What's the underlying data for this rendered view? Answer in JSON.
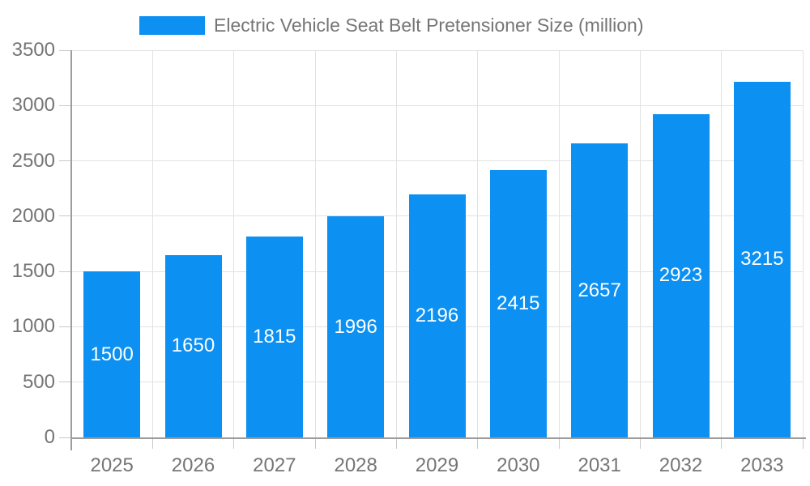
{
  "chart_data": {
    "type": "bar",
    "title": "Electric Vehicle Seat Belt Pretensioner Size (million)",
    "categories": [
      "2025",
      "2026",
      "2027",
      "2028",
      "2029",
      "2030",
      "2031",
      "2032",
      "2033"
    ],
    "values": [
      1500,
      1650,
      1815,
      1996,
      2196,
      2415,
      2657,
      2923,
      3215
    ],
    "xlabel": "",
    "ylabel": "",
    "ylim": [
      0,
      3500
    ],
    "yticks": [
      0,
      500,
      1000,
      1500,
      2000,
      2500,
      3000,
      3500
    ],
    "grid": true,
    "legend_position": "top",
    "value_label_position": "inside-center",
    "colors": {
      "bar": "#0c90f2",
      "value_label": "#ffffff",
      "axis_text": "#757575",
      "grid_line": "#e2e2e2",
      "tick": "#c9c9c9",
      "axis_line": "#9c9c9c",
      "background": "#ffffff"
    }
  }
}
